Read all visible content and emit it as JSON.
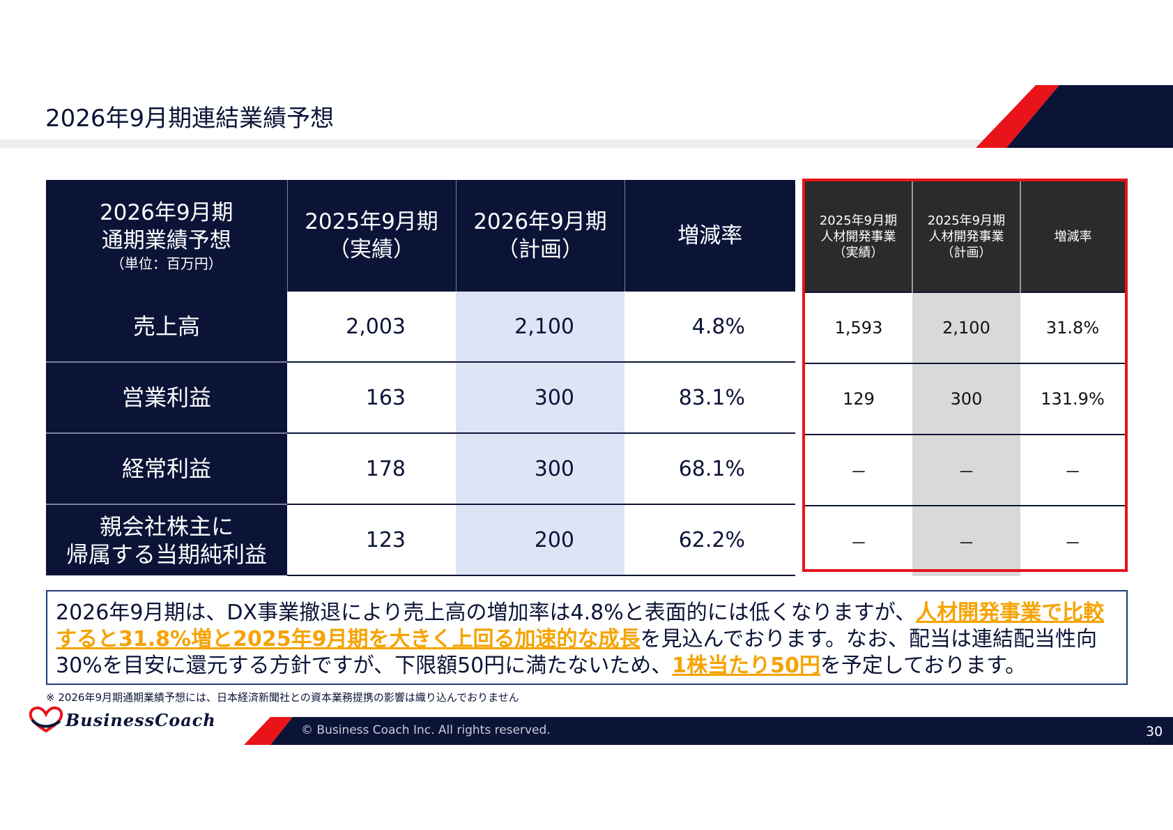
{
  "header": {
    "title": "2026年9月期連結業績予想"
  },
  "main_table": {
    "corner": {
      "line1": "2026年9月期",
      "line2": "通期業績予想",
      "unit": "（単位：百万円）"
    },
    "columns": [
      {
        "line1": "2025年9月期",
        "line2": "（実績）"
      },
      {
        "line1": "2026年9月期",
        "line2": "（計画）"
      },
      {
        "line1": "増減率"
      }
    ],
    "rows": [
      {
        "label": "売上高",
        "actual": "2,003",
        "plan": "2,100",
        "rate": "4.8%"
      },
      {
        "label": "営業利益",
        "actual": "163",
        "plan": "300",
        "rate": "83.1%"
      },
      {
        "label": "経常利益",
        "actual": "178",
        "plan": "300",
        "rate": "68.1%"
      },
      {
        "label_line1": "親会社株主に",
        "label_line2": "帰属する当期純利益",
        "actual": "123",
        "plan": "200",
        "rate": "62.2%"
      }
    ]
  },
  "sub_table": {
    "columns": [
      {
        "line1": "2025年9月期",
        "line2": "人材開発事業",
        "line3": "（実績）"
      },
      {
        "line1": "2025年9月期",
        "line2": "人材開発事業",
        "line3": "（計画）"
      },
      {
        "line1": "増減率"
      }
    ],
    "rows": [
      {
        "actual": "1,593",
        "plan": "2,100",
        "rate": "31.8%"
      },
      {
        "actual": "129",
        "plan": "300",
        "rate": "131.9%"
      },
      {
        "actual": "－",
        "plan": "－",
        "rate": "－"
      },
      {
        "actual": "－",
        "plan": "－",
        "rate": "－"
      }
    ]
  },
  "note": {
    "p1": "2026年9月期は、DX事業撤退により売上高の増加率は4.8%と表面的には低くなりますが、",
    "h1": "人材開発事業で比較すると31.8%増と2025年9月期を大きく上回る加速的な成長",
    "p2": "を見込んでおります。なお、配当は連結配当性向30%を目安に還元する方針ですが、下限額50円に満たないため、",
    "h2": "1株当たり50円",
    "p3": "を予定しております。"
  },
  "footnote": "※ 2026年9月期通期業績予想には、日本経済新聞社との資本業務提携の影響は織り込んでおりません",
  "footer": {
    "logo_text": "BusinessCoach",
    "copyright": "© Business Coach Inc. All rights reserved.",
    "page_number": "30"
  },
  "colors": {
    "navy": "#0b1437",
    "red": "#e8141a",
    "highlight": "#f5a300",
    "plan_bg": "#dce4f6",
    "gray_bg": "#d9d9d9"
  }
}
